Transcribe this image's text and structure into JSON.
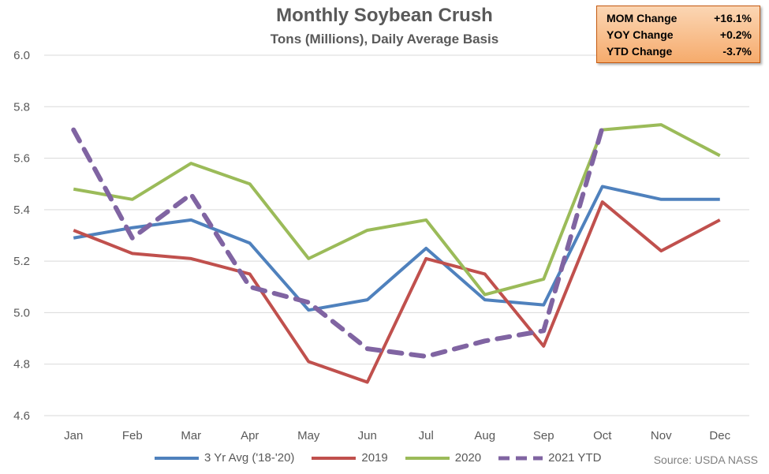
{
  "chart_data": {
    "type": "line",
    "title": "Monthly Soybean Crush",
    "subtitle": "Tons (Millions), Daily Average Basis",
    "categories": [
      "Jan",
      "Feb",
      "Mar",
      "Apr",
      "May",
      "Jun",
      "Jul",
      "Aug",
      "Sep",
      "Oct",
      "Nov",
      "Dec"
    ],
    "ylim": [
      4.6,
      6.0
    ],
    "yticks": [
      "4.6",
      "4.8",
      "5.0",
      "5.2",
      "5.4",
      "5.6",
      "5.8",
      "6.0"
    ],
    "grid": true,
    "legend_position": "bottom",
    "series": [
      {
        "name": "3 Yr Avg ('18-'20)",
        "color": "#4f81bd",
        "dashed": false,
        "values": [
          5.29,
          5.33,
          5.36,
          5.27,
          5.01,
          5.05,
          5.25,
          5.05,
          5.03,
          5.49,
          5.44,
          5.44
        ]
      },
      {
        "name": "2019",
        "color": "#c0504d",
        "dashed": false,
        "values": [
          5.32,
          5.23,
          5.21,
          5.15,
          4.81,
          4.73,
          5.21,
          5.15,
          4.87,
          5.43,
          5.24,
          5.36
        ]
      },
      {
        "name": "2020",
        "color": "#9bbb59",
        "dashed": false,
        "values": [
          5.48,
          5.44,
          5.58,
          5.5,
          5.21,
          5.32,
          5.36,
          5.07,
          5.13,
          5.71,
          5.73,
          5.61
        ]
      },
      {
        "name": "2021 YTD",
        "color": "#8064a2",
        "dashed": true,
        "values": [
          5.71,
          5.29,
          5.46,
          5.1,
          5.04,
          4.86,
          4.83,
          4.89,
          4.93,
          5.72,
          null,
          null
        ]
      }
    ],
    "stats_box": [
      {
        "label": "MOM Change",
        "value": "+16.1%"
      },
      {
        "label": "YOY Change",
        "value": "+0.2%"
      },
      {
        "label": "YTD Change",
        "value": "-3.7%"
      }
    ],
    "source": "Source: USDA NASS"
  }
}
